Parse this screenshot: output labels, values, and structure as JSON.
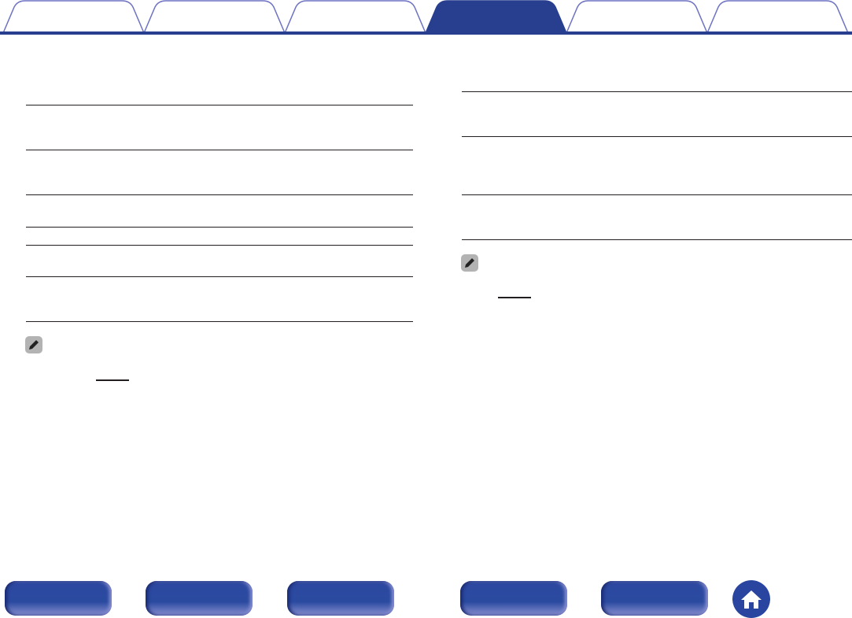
{
  "colors": {
    "accent": "#283f8f",
    "tab_outline": "#6d72c3",
    "rule": "#231f20",
    "note_icon_bg": "#b3b3b3"
  },
  "tabs": {
    "count": 6,
    "active_index": 3
  },
  "notes": [
    {
      "icon": "pencil-icon"
    },
    {
      "icon": "pencil-icon"
    }
  ],
  "footer": {
    "buttons": 5,
    "home_icon": "home-icon"
  }
}
